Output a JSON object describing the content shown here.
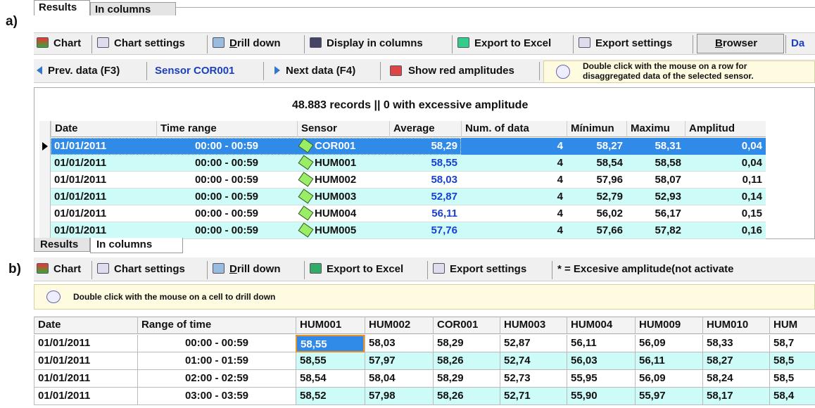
{
  "panel_a": {
    "label": "a)",
    "tabs": [
      "Results",
      "In columns"
    ],
    "toolbar": [
      "Chart",
      "Chart settings",
      "Drill down",
      "Display in columns",
      "Export to Excel",
      "Export settings",
      "Browser",
      "Da"
    ],
    "nav_toolbar": {
      "prev": "Prev. data (F3)",
      "sensor": "Sensor COR001",
      "next": "Next data (F4)",
      "red": "Show red amplitudes",
      "info": [
        "Double click with the mouse on a row for",
        "disaggregated data of the selected sensor."
      ]
    },
    "records": "48.883 records || 0 with excessive amplitude",
    "table": {
      "columns": [
        "Date",
        "Time range",
        "Sensor",
        "Average",
        "Num. of data",
        "Mínimun",
        "Maximu",
        "Amplitud"
      ],
      "rows": [
        [
          "01/01/2011",
          "00:00 - 00:59",
          "COR001",
          "58,29",
          "4",
          "58,27",
          "58,31",
          "0,04"
        ],
        [
          "01/01/2011",
          "00:00 - 00:59",
          "HUM001",
          "58,55",
          "4",
          "58,54",
          "58,58",
          "0,04"
        ],
        [
          "01/01/2011",
          "00:00 - 00:59",
          "HUM002",
          "58,03",
          "4",
          "57,96",
          "58,07",
          "0,11"
        ],
        [
          "01/01/2011",
          "00:00 - 00:59",
          "HUM003",
          "52,87",
          "4",
          "52,79",
          "52,93",
          "0,14"
        ],
        [
          "01/01/2011",
          "00:00 - 00:59",
          "HUM004",
          "56,11",
          "4",
          "56,02",
          "56,17",
          "0,15"
        ],
        [
          "01/01/2011",
          "00:00 - 00:59",
          "HUM005",
          "57,76",
          "4",
          "57,66",
          "57,82",
          "0,16"
        ]
      ]
    },
    "bottom_tabs": [
      "Results",
      "In columns"
    ]
  },
  "panel_b": {
    "label": "b)",
    "toolbar": [
      "Chart",
      "Chart settings",
      "Drill down",
      "Export to Excel",
      "Export settings"
    ],
    "note": "* = Excesive amplitude(not activate",
    "info": "Double click with the mouse on a cell to drill down",
    "table": {
      "columns": [
        "Date",
        "Range of time",
        "HUM001",
        "HUM002",
        "COR001",
        "HUM003",
        "HUM004",
        "HUM009",
        "HUM010",
        "HUM"
      ],
      "rows": [
        [
          "01/01/2011",
          "00:00 - 00:59",
          "58,55",
          "58,03",
          "58,29",
          "52,87",
          "56,11",
          "56,09",
          "58,33",
          "58,7"
        ],
        [
          "01/01/2011",
          "01:00 - 01:59",
          "58,55",
          "57,97",
          "58,26",
          "52,74",
          "56,03",
          "56,11",
          "58,27",
          "58,5"
        ],
        [
          "01/01/2011",
          "02:00 - 02:59",
          "58,54",
          "58,04",
          "58,29",
          "52,73",
          "55,95",
          "56,09",
          "58,24",
          "58,5"
        ],
        [
          "01/01/2011",
          "03:00 - 03:59",
          "58,52",
          "57,98",
          "58,26",
          "52,71",
          "55,90",
          "55,97",
          "58,17",
          "58,4"
        ]
      ]
    }
  }
}
